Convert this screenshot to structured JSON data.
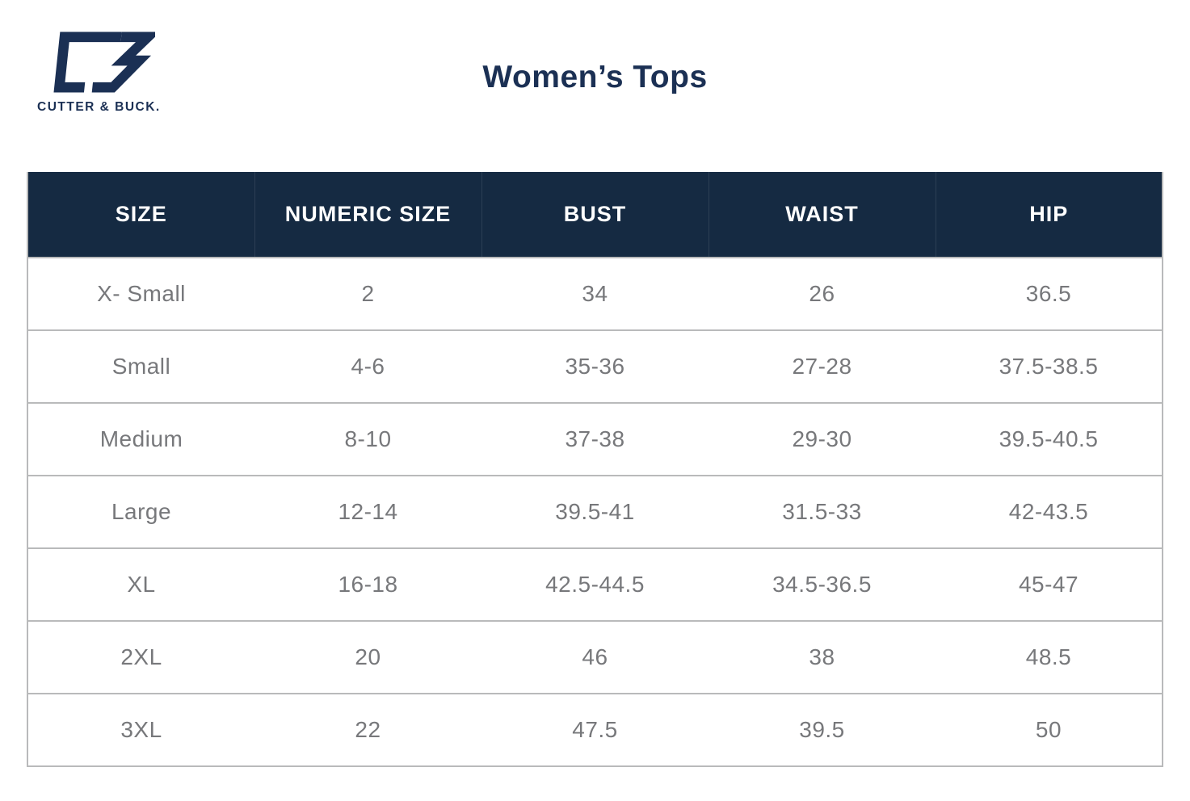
{
  "brand": {
    "logo_mark": "cutter-buck-cb-monogram",
    "logo_text": "CUTTER & BUCK."
  },
  "page": {
    "title": "Women’s Tops"
  },
  "table": {
    "columns": [
      "size",
      "numeric_size",
      "bust",
      "waist",
      "hip"
    ],
    "headers": {
      "size": "SIZE",
      "numeric_size": "NUMERIC SIZE",
      "bust": "BUST",
      "waist": "WAIST",
      "hip": "HIP"
    },
    "rows": [
      {
        "size": "X- Small",
        "numeric_size": "2",
        "bust": "34",
        "waist": "26",
        "hip": "36.5"
      },
      {
        "size": "Small",
        "numeric_size": "4-6",
        "bust": "35-36",
        "waist": "27-28",
        "hip": "37.5-38.5"
      },
      {
        "size": "Medium",
        "numeric_size": "8-10",
        "bust": "37-38",
        "waist": "29-30",
        "hip": "39.5-40.5"
      },
      {
        "size": "Large",
        "numeric_size": "12-14",
        "bust": "39.5-41",
        "waist": "31.5-33",
        "hip": "42-43.5"
      },
      {
        "size": "XL",
        "numeric_size": "16-18",
        "bust": "42.5-44.5",
        "waist": "34.5-36.5",
        "hip": "45-47"
      },
      {
        "size": "2XL",
        "numeric_size": "20",
        "bust": "46",
        "waist": "38",
        "hip": "48.5"
      },
      {
        "size": "3XL",
        "numeric_size": "22",
        "bust": "47.5",
        "waist": "39.5",
        "hip": "50"
      }
    ]
  },
  "colors": {
    "page_bg": "#ffffff",
    "header_bg": "#152a42",
    "header_text": "#ffffff",
    "body_text": "#77787b",
    "brand_navy": "#1b3054",
    "row_border": "#b9babb"
  }
}
